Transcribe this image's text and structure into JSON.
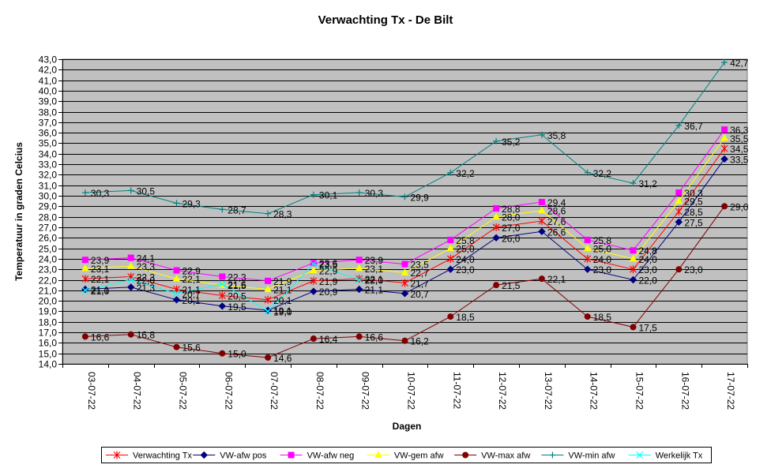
{
  "chart_data": {
    "type": "line",
    "title": "Verwachting Tx - De Bilt",
    "xlabel": "Dagen",
    "ylabel": "Temperatuur in graden Celcius",
    "ylim": [
      14.0,
      43.0
    ],
    "ystep": 1.0,
    "grid": true,
    "legend_position": "bottom",
    "plot_background": "#c0c0c0",
    "categories": [
      "03-07-22",
      "04-07-22",
      "05-07-22",
      "06-07-22",
      "07-07-22",
      "08-07-22",
      "09-07-22",
      "10-07-22",
      "11-07-22",
      "12-07-22",
      "13-07-22",
      "14-07-22",
      "15-07-22",
      "16-07-22",
      "17-07-22"
    ],
    "series": [
      {
        "name": "Verwachting Tx",
        "color": "#ff0000",
        "marker": "star",
        "values": [
          22.1,
          22.3,
          21.1,
          20.5,
          20.1,
          21.9,
          22.1,
          21.7,
          24.0,
          27.0,
          27.6,
          24.0,
          23.0,
          28.5,
          34.5
        ]
      },
      {
        "name": "VW-afw pos",
        "color": "#000080",
        "marker": "diamond",
        "values": [
          21.1,
          21.3,
          20.1,
          19.5,
          19.1,
          20.9,
          21.1,
          20.7,
          23.0,
          26.0,
          26.6,
          23.0,
          22.0,
          27.5,
          33.5
        ]
      },
      {
        "name": "VW-afw neg",
        "color": "#ff00ff",
        "marker": "square",
        "values": [
          23.9,
          24.1,
          22.9,
          22.3,
          21.9,
          23.6,
          23.9,
          23.5,
          25.8,
          28.8,
          29.4,
          25.8,
          24.8,
          30.3,
          36.3
        ]
      },
      {
        "name": "VW-gem afw",
        "color": "#ffff00",
        "marker": "triangle",
        "values": [
          23.1,
          23.3,
          22.1,
          21.5,
          21.1,
          22.9,
          23.1,
          22.7,
          25.0,
          28.0,
          28.6,
          25.0,
          24.0,
          29.5,
          35.5
        ]
      },
      {
        "name": "VW-max afw",
        "color": "#800000",
        "marker": "circle",
        "values": [
          16.6,
          16.8,
          15.6,
          15.0,
          14.6,
          16.4,
          16.6,
          16.2,
          18.5,
          21.5,
          22.1,
          18.5,
          17.5,
          23.0,
          29.0
        ]
      },
      {
        "name": "VW-min afw",
        "color": "#008080",
        "marker": "plus",
        "values": [
          30.3,
          30.5,
          29.3,
          28.7,
          28.3,
          30.1,
          30.3,
          29.9,
          32.2,
          35.2,
          35.8,
          32.2,
          31.2,
          36.7,
          42.7
        ]
      },
      {
        "name": "Werkelijk Tx",
        "color": "#00ffff",
        "marker": "cross",
        "values": [
          21.0,
          22.0,
          20.7,
          21.6,
          19.0,
          23.5,
          22.0,
          null,
          null,
          null,
          null,
          null,
          null,
          null,
          null
        ]
      }
    ],
    "data_labels": [
      {
        "series": 0,
        "labels": [
          "22,1",
          "22,3",
          "21,1",
          "20,5",
          "20,1",
          "21,9",
          "22,1",
          "21,7",
          "24,0",
          "27,0",
          "27,6",
          "24,0",
          "23,0",
          "28,5",
          "34,5"
        ]
      },
      {
        "series": 1,
        "labels": [
          "21,1",
          "21,3",
          "20,1",
          "19,5",
          "19,1",
          "20,9",
          "21,1",
          "20,7",
          "23,0",
          "26,0",
          "26,6",
          "23,0",
          "22,0",
          "27,5",
          "33,5"
        ]
      },
      {
        "series": 2,
        "labels": [
          "23,9",
          "24,1",
          "22,9",
          "22,3",
          "21,9",
          "23,6",
          "23,9",
          "23,5",
          "25,8",
          "28,8",
          "29,4",
          "25,8",
          "24,8",
          "30,3",
          "36,3"
        ]
      },
      {
        "series": 3,
        "labels": [
          "23,1",
          "23,3",
          "22,1",
          "21,5",
          "21,1",
          "22,9",
          "23,1",
          "22,7",
          "25,0",
          "28,0",
          "28,6",
          "25,0",
          "24,0",
          "29,5",
          "35,5"
        ]
      },
      {
        "series": 4,
        "labels": [
          "16,6",
          "16,8",
          "15,6",
          "15,0",
          "14,6",
          "16,4",
          "16,6",
          "16,2",
          "18,5",
          "21,5",
          "22,1",
          "18,5",
          "17,5",
          "23,0",
          "29,0"
        ]
      },
      {
        "series": 5,
        "labels": [
          "30,3",
          "30,5",
          "29,3",
          "28,7",
          "28,3",
          "30,1",
          "30,3",
          "29,9",
          "32,2",
          "35,2",
          "35,8",
          "32,2",
          "31,2",
          "36,7",
          "42,7"
        ]
      },
      {
        "series": 6,
        "labels": [
          "21,0",
          "22,0",
          "20,7",
          "21,6",
          "19,0",
          "23,5",
          "22,0",
          "",
          "",
          "",
          "",
          "",
          "",
          "",
          ""
        ]
      }
    ]
  }
}
